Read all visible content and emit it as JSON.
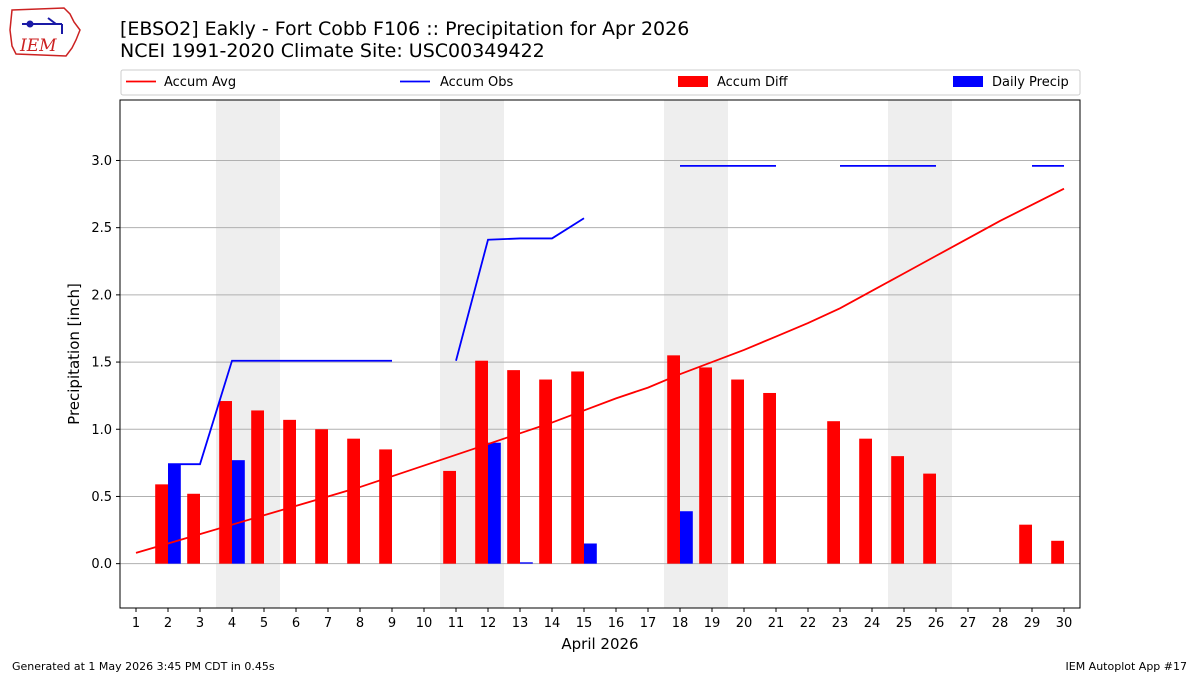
{
  "chart_data": {
    "type": "bar",
    "title": "[EBSO2] Eakly - Fort Cobb F106 :: Precipitation for Apr 2026",
    "subtitle": "NCEI 1991-2020 Climate Site: USC00349422",
    "xlabel": "April 2026",
    "ylabel": "Precipitation [inch]",
    "xlim": [
      0.5,
      30.5
    ],
    "ylim": [
      -0.33,
      3.45
    ],
    "xticks": [
      1,
      2,
      3,
      4,
      5,
      6,
      7,
      8,
      9,
      10,
      11,
      12,
      13,
      14,
      15,
      16,
      17,
      18,
      19,
      20,
      21,
      22,
      23,
      24,
      25,
      26,
      27,
      28,
      29,
      30
    ],
    "yticks": [
      0.0,
      0.5,
      1.0,
      1.5,
      2.0,
      2.5,
      3.0
    ],
    "ytick_labels": [
      "0.0",
      "0.5",
      "1.0",
      "1.5",
      "2.0",
      "2.5",
      "3.0"
    ],
    "grid": "y",
    "legend_position": "top",
    "weekend_shading": [
      [
        3.5,
        5.5
      ],
      [
        10.5,
        12.5
      ],
      [
        17.5,
        19.5
      ],
      [
        24.5,
        26.5
      ]
    ],
    "series": [
      {
        "name": "Accum Avg",
        "kind": "line",
        "color": "#ff0000",
        "x": [
          1,
          2,
          3,
          4,
          5,
          6,
          7,
          8,
          9,
          10,
          11,
          12,
          13,
          14,
          15,
          16,
          17,
          18,
          19,
          20,
          21,
          22,
          23,
          24,
          25,
          26,
          27,
          28,
          29,
          30
        ],
        "values": [
          0.08,
          0.15,
          0.22,
          0.29,
          0.36,
          0.43,
          0.5,
          0.57,
          0.65,
          0.73,
          0.81,
          0.89,
          0.97,
          1.05,
          1.14,
          1.23,
          1.31,
          1.41,
          1.5,
          1.59,
          1.69,
          1.79,
          1.9,
          2.03,
          2.16,
          2.29,
          2.42,
          2.55,
          2.67,
          2.79
        ]
      },
      {
        "name": "Accum Obs",
        "kind": "line",
        "color": "#0000ff",
        "segments": [
          {
            "x": [
              2,
              3,
              4,
              5,
              6,
              7,
              8,
              9
            ],
            "values": [
              0.74,
              0.74,
              1.51,
              1.51,
              1.51,
              1.51,
              1.51,
              1.51
            ]
          },
          {
            "x": [
              11,
              12,
              13,
              14,
              15
            ],
            "values": [
              1.51,
              2.41,
              2.42,
              2.42,
              2.57
            ]
          },
          {
            "x": [
              18,
              19,
              20,
              21
            ],
            "values": [
              2.96,
              2.96,
              2.96,
              2.96
            ]
          },
          {
            "x": [
              23,
              24,
              25,
              26
            ],
            "values": [
              2.96,
              2.96,
              2.96,
              2.96
            ]
          },
          {
            "x": [
              29,
              30
            ],
            "values": [
              2.96,
              2.96
            ]
          }
        ]
      },
      {
        "name": "Accum Diff",
        "kind": "bar",
        "color": "#ff0000",
        "x": [
          1,
          2,
          3,
          4,
          5,
          6,
          7,
          8,
          9,
          10,
          11,
          12,
          13,
          14,
          15,
          16,
          17,
          18,
          19,
          20,
          21,
          22,
          23,
          24,
          25,
          26,
          27,
          28,
          29,
          30
        ],
        "values": [
          null,
          0.59,
          0.52,
          1.21,
          1.14,
          1.07,
          1.0,
          0.93,
          0.85,
          null,
          0.69,
          1.51,
          1.44,
          1.37,
          1.43,
          null,
          null,
          1.55,
          1.46,
          1.37,
          1.27,
          null,
          1.06,
          0.93,
          0.8,
          0.67,
          null,
          null,
          0.29,
          0.17
        ]
      },
      {
        "name": "Daily Precip",
        "kind": "bar",
        "color": "#0000ff",
        "x": [
          2,
          4,
          12,
          13,
          15,
          18
        ],
        "values": [
          0.74,
          0.77,
          0.9,
          0.01,
          0.15,
          0.39
        ]
      }
    ]
  },
  "footer": {
    "generated": "Generated at 1 May 2026 3:45 PM CDT in 0.45s",
    "app": "IEM Autoplot App #17"
  },
  "logo": {
    "text": "IEM",
    "colors": {
      "outline": "#cc2222",
      "accent": "#1a1aa6"
    }
  }
}
